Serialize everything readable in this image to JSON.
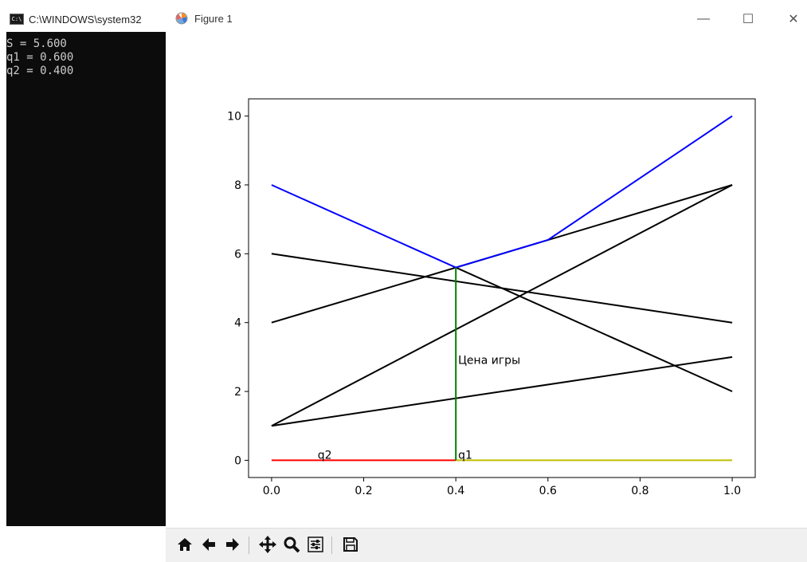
{
  "console": {
    "title": "C:\\WINDOWS\\system32",
    "icon": "cmd-icon",
    "lines": [
      "S = 5.600",
      "q1 = 0.600",
      "q2 = 0.400"
    ]
  },
  "figure": {
    "title": "Figure 1",
    "minimize": "—",
    "maximize": "☐",
    "close": "✕"
  },
  "toolbar": {
    "buttons": [
      "home-icon",
      "back-icon",
      "forward-icon",
      "pan-icon",
      "zoom-icon",
      "configure-icon",
      "save-icon"
    ]
  },
  "chart_data": {
    "type": "line",
    "xlim": [
      -0.05,
      1.05
    ],
    "ylim": [
      -0.5,
      10.5
    ],
    "xticks": [
      "0.0",
      "0.2",
      "0.4",
      "0.6",
      "0.8",
      "1.0"
    ],
    "yticks": [
      "0",
      "2",
      "4",
      "6",
      "8",
      "10"
    ],
    "grid": false,
    "series": [
      {
        "color": "#000000",
        "x": [
          0,
          1
        ],
        "y": [
          6,
          4
        ]
      },
      {
        "color": "#000000",
        "x": [
          0,
          1
        ],
        "y": [
          4,
          8
        ]
      },
      {
        "color": "#000000",
        "x": [
          0,
          1
        ],
        "y": [
          1,
          8
        ]
      },
      {
        "color": "#000000",
        "x": [
          0,
          1
        ],
        "y": [
          1,
          3
        ]
      },
      {
        "color": "#000000",
        "x": [
          0.4,
          1
        ],
        "y": [
          5.6,
          2
        ]
      },
      {
        "color": "#0000ff",
        "x": [
          0,
          0.4,
          0.6,
          1
        ],
        "y": [
          8,
          5.6,
          6.4,
          10
        ]
      },
      {
        "color": "#ff0000",
        "x": [
          0,
          0.4
        ],
        "y": [
          0,
          0
        ]
      },
      {
        "color": "#bfbf00",
        "x": [
          0.4,
          1
        ],
        "y": [
          0,
          0
        ]
      },
      {
        "color": "#008000",
        "x": [
          0.4,
          0.4
        ],
        "y": [
          0,
          5.6
        ]
      }
    ],
    "annotations": [
      {
        "text": "q2",
        "x": 0.1,
        "y": 0.05
      },
      {
        "text": "q1",
        "x": 0.405,
        "y": 0.05
      },
      {
        "text": "Цена игры",
        "x": 0.405,
        "y": 2.8
      }
    ]
  }
}
